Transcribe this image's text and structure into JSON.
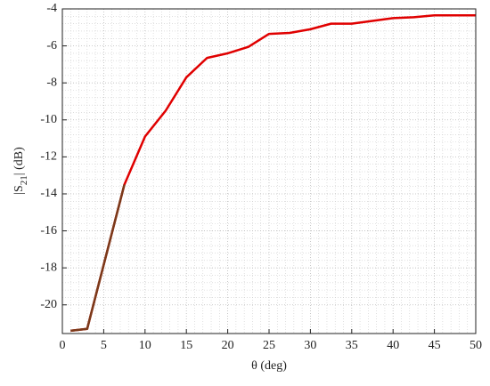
{
  "chart_data": {
    "type": "line",
    "x_label": "θ (deg)",
    "y_label": {
      "pre": "|S",
      "sub": "21",
      "post": "| (dB)"
    },
    "x": [
      1,
      3,
      7.5,
      10,
      12.5,
      15,
      17.5,
      20,
      22.5,
      25,
      27.5,
      30,
      32.5,
      35,
      37.5,
      40,
      42.5,
      45,
      47.5,
      50
    ],
    "series": [
      {
        "color": "#e00000",
        "values": [
          -21.4,
          -21.3,
          -13.5,
          -10.9,
          -9.5,
          -7.7,
          -6.65,
          -6.4,
          -6.05,
          -5.35,
          -5.3,
          -5.1,
          -4.8,
          -4.8,
          -4.65,
          -4.5,
          -4.45,
          -4.35,
          -4.35,
          -4.35
        ]
      },
      {
        "color": "#7a3a1a",
        "values": [
          -21.4,
          -21.3,
          -13.5,
          null,
          null,
          null,
          null,
          null,
          null,
          null,
          null,
          null,
          null,
          null,
          null,
          null,
          null,
          null,
          null,
          null
        ]
      }
    ],
    "xlim": [
      0,
      50
    ],
    "xticks": [
      0,
      5,
      10,
      15,
      20,
      25,
      30,
      35,
      40,
      45,
      50
    ],
    "ylim": [
      -21.55,
      -4
    ],
    "yticks": [
      -20,
      -18,
      -16,
      -14,
      -12,
      -10,
      -8,
      -6,
      -4
    ],
    "grid": true
  }
}
